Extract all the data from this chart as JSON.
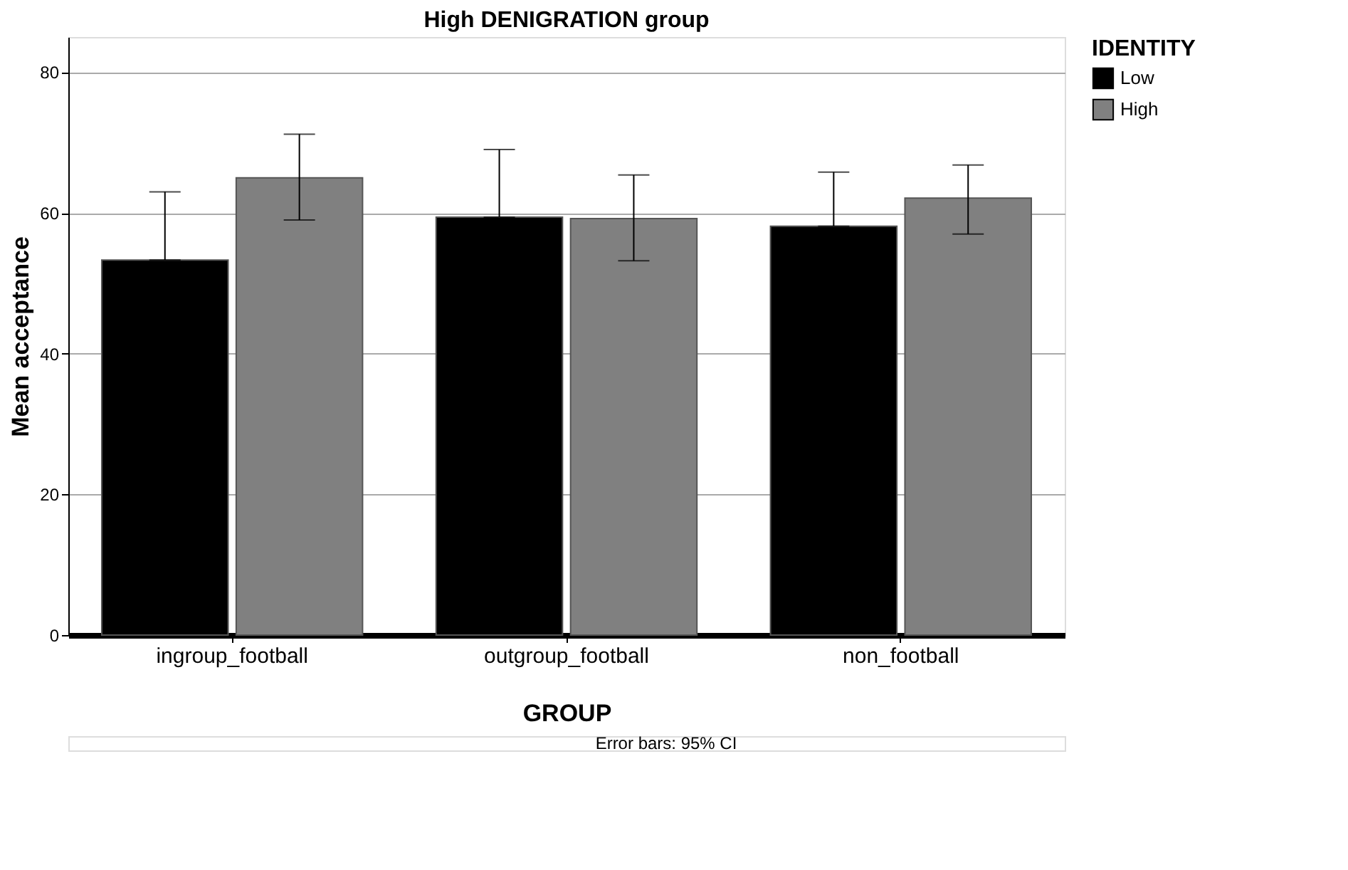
{
  "chart_data": {
    "type": "bar",
    "title": "High DENIGRATION group",
    "xlabel": "GROUP",
    "ylabel": "Mean acceptance",
    "legend_title": "IDENTITY",
    "categories": [
      "ingroup_football",
      "outgroup_football",
      "non_football"
    ],
    "series": [
      {
        "name": "Low",
        "color": "#000000",
        "values": [
          53.3,
          59.4,
          58.1
        ],
        "errors": [
          [
            53.3,
            63.0
          ],
          [
            59.4,
            69.0
          ],
          [
            58.1,
            65.8
          ]
        ]
      },
      {
        "name": "High",
        "color": "#808080",
        "values": [
          65.0,
          59.2,
          62.1
        ],
        "errors": [
          [
            59.0,
            71.2
          ],
          [
            53.2,
            65.4
          ],
          [
            57.0,
            66.8
          ]
        ]
      }
    ],
    "ylim": [
      0,
      85
    ],
    "yticks": [
      0,
      20,
      40,
      60,
      80
    ],
    "grid": "y",
    "legend": "top right",
    "annotations": [
      "Error bars: 95% CI"
    ]
  }
}
